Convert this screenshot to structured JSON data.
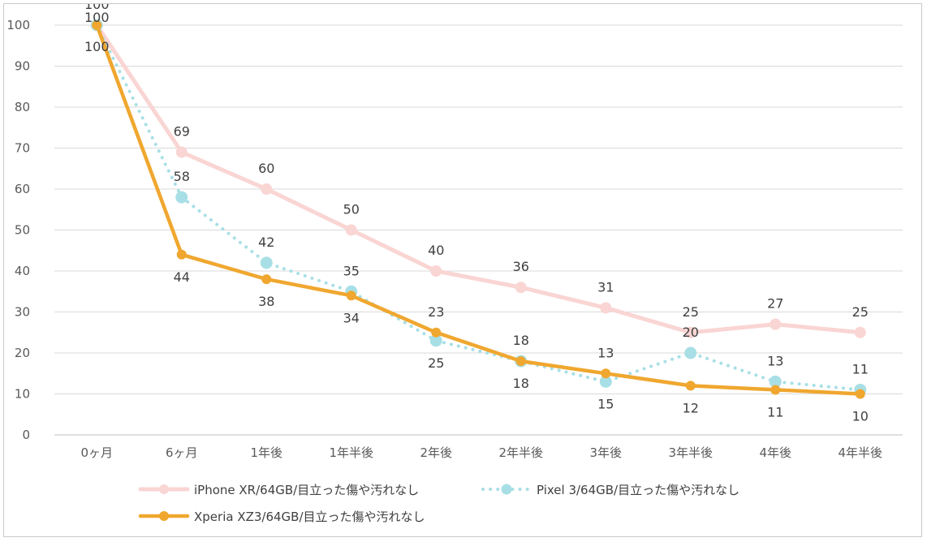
{
  "chart_data": {
    "type": "line",
    "title": "",
    "xlabel": "",
    "ylabel": "",
    "categories": [
      "0ヶ月",
      "6ヶ月",
      "1年後",
      "1年半後",
      "2年後",
      "2年半後",
      "3年後",
      "3年半後",
      "4年後",
      "4年半後"
    ],
    "ylim": [
      0,
      100
    ],
    "yticks": [
      "0",
      "10",
      "20",
      "30",
      "40",
      "50",
      "60",
      "70",
      "80",
      "90",
      "100"
    ],
    "grid": true,
    "legend_position": "bottom",
    "series": [
      {
        "name": "iPhone XR/64GB/目立った傷や汚れなし",
        "values": [
          100,
          69,
          60,
          50,
          40,
          36,
          31,
          25,
          27,
          25
        ],
        "color": "#f9d5d3",
        "style": "solid-thick"
      },
      {
        "name": "Pixel 3/64GB/目立った傷や汚れなし",
        "values": [
          100,
          58,
          42,
          35,
          23,
          18,
          13,
          20,
          13,
          11
        ],
        "color": "#a8dfe6",
        "style": "dotted"
      },
      {
        "name": "Xperia XZ3/64GB/目立った傷や汚れなし",
        "values": [
          100,
          44,
          38,
          34,
          25,
          18,
          15,
          12,
          11,
          10
        ],
        "color": "#f0a72f",
        "style": "solid-thick"
      }
    ]
  }
}
